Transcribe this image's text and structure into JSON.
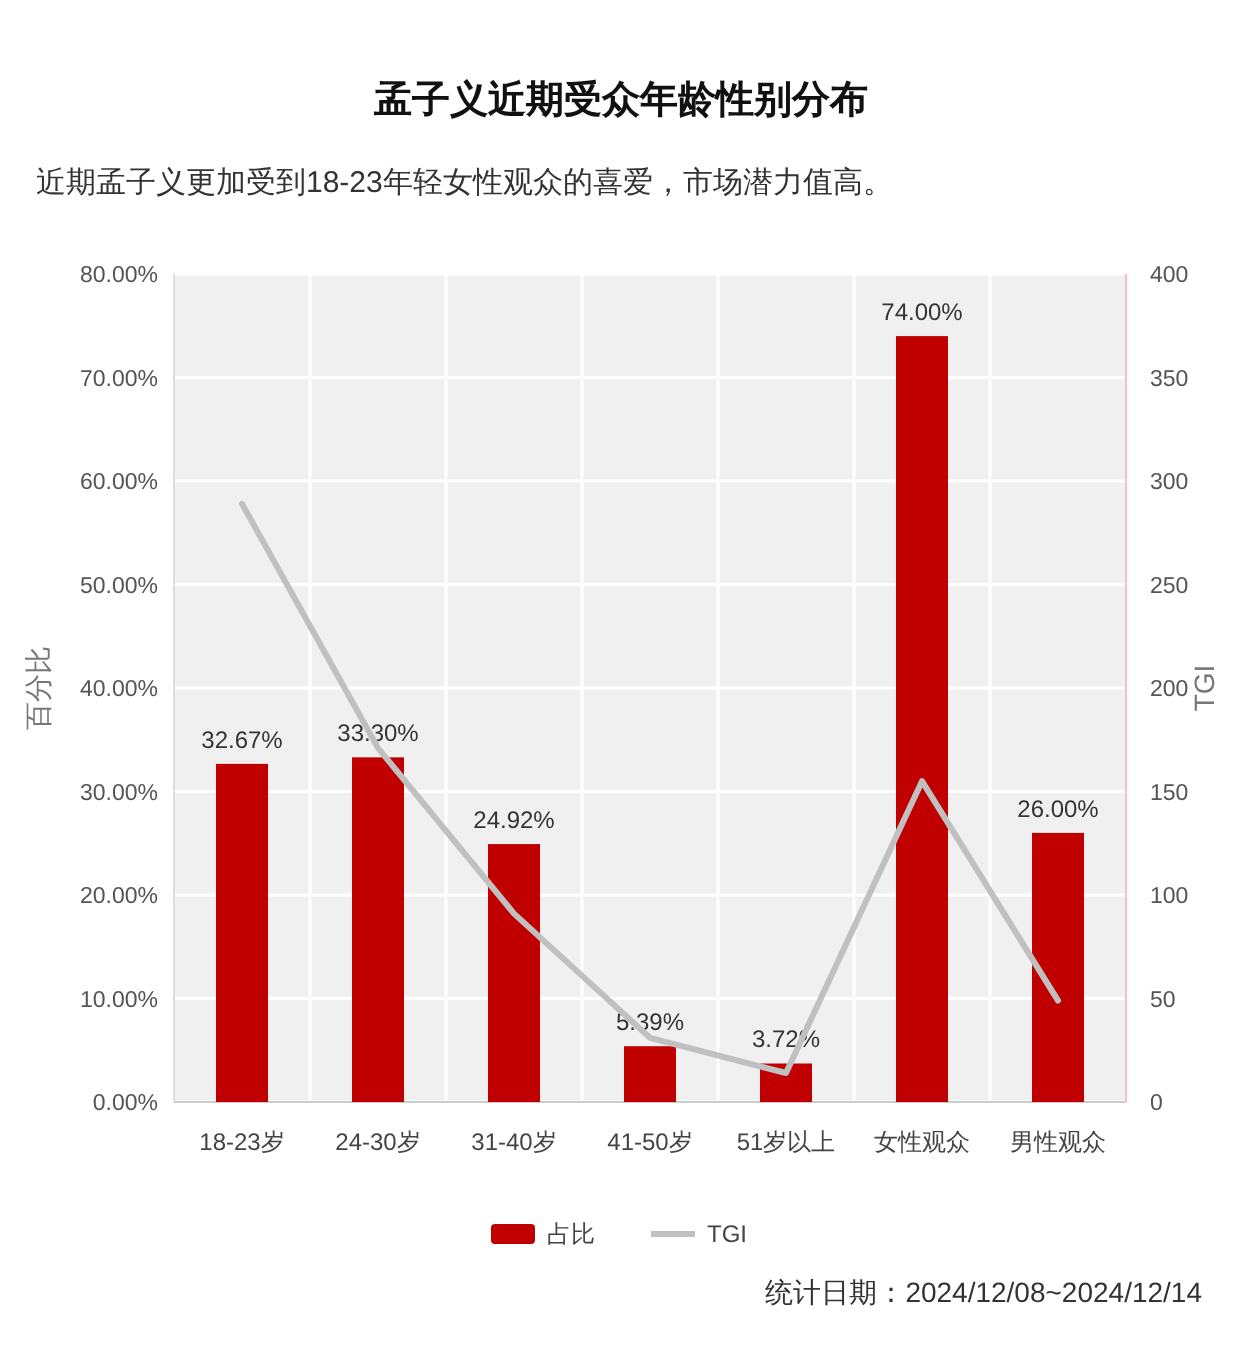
{
  "chart_data": {
    "type": "bar",
    "title": "孟子义近期受众年龄性别分布",
    "subtitle": "近期孟子义更加受到18-23年轻女性观众的喜爱，市场潜力值高。",
    "categories": [
      "18-23岁",
      "24-30岁",
      "31-40岁",
      "41-50岁",
      "51岁以上",
      "女性观众",
      "男性观众"
    ],
    "series": [
      {
        "name": "占比",
        "color": "#c00000",
        "values": [
          32.67,
          33.3,
          24.92,
          5.39,
          3.72,
          74.0,
          26.0
        ],
        "value_labels": [
          "32.67%",
          "33.30%",
          "24.92%",
          "5.39%",
          "3.72%",
          "74.00%",
          "26.00%"
        ]
      },
      {
        "name": "TGI",
        "type": "line",
        "axis": "y2",
        "color": "#c0c0c0",
        "values": [
          289,
          171,
          91,
          31,
          14,
          155,
          49
        ]
      }
    ],
    "ylabel": "百分比",
    "y2label": "TGI",
    "ylim": [
      0,
      80
    ],
    "yticks": [
      {
        "value": 0,
        "label": "0.00%"
      },
      {
        "value": 10,
        "label": "10.00%"
      },
      {
        "value": 20,
        "label": "20.00%"
      },
      {
        "value": 30,
        "label": "30.00%"
      },
      {
        "value": 40,
        "label": "40.00%"
      },
      {
        "value": 50,
        "label": "50.00%"
      },
      {
        "value": 60,
        "label": "60.00%"
      },
      {
        "value": 70,
        "label": "70.00%"
      },
      {
        "value": 80,
        "label": "80.00%"
      }
    ],
    "y2lim": [
      0,
      400
    ],
    "y2ticks": [
      0,
      50,
      100,
      150,
      200,
      250,
      300,
      350,
      400
    ],
    "grid": true,
    "legend": "bottom",
    "marker": "none",
    "annotations": [
      "统计日期：2024/12/08~2024/12/14"
    ]
  }
}
